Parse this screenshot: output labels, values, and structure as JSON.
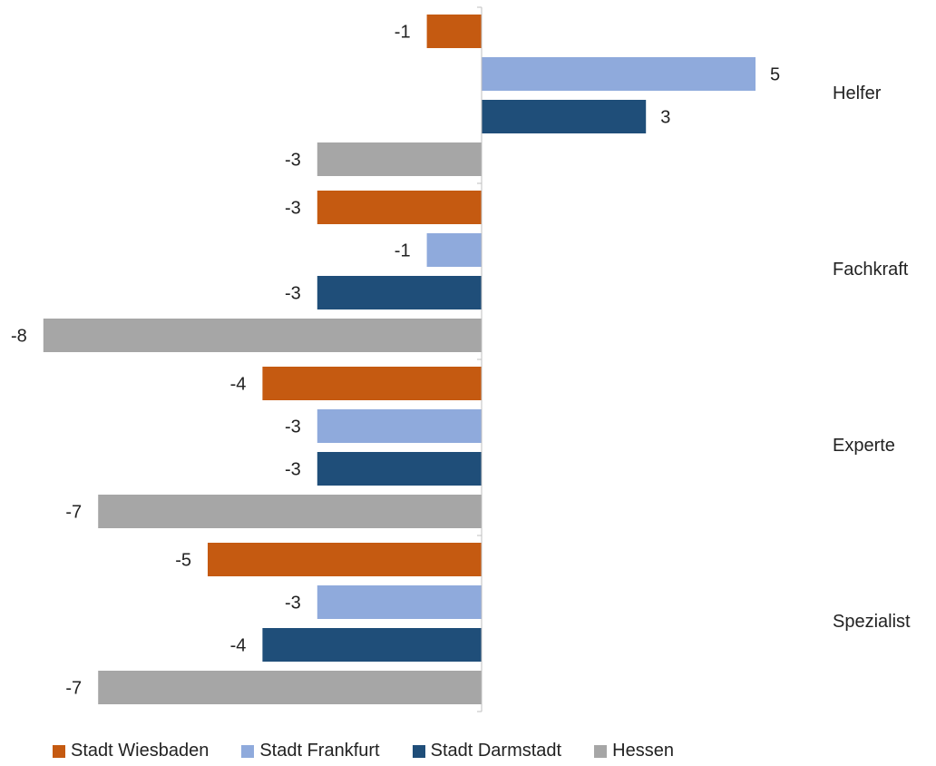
{
  "chart_data": {
    "type": "bar",
    "orientation": "horizontal",
    "categories": [
      "Helfer",
      "Fachkraft",
      "Experte",
      "Spezialist"
    ],
    "series": [
      {
        "name": "Stadt Wiesbaden",
        "color": "#C55A11",
        "values": [
          -1,
          -3,
          -4,
          -5
        ]
      },
      {
        "name": "Stadt Frankfurt",
        "color": "#8FAADC",
        "values": [
          5,
          -1,
          -3,
          -3
        ]
      },
      {
        "name": "Stadt Darmstadt",
        "color": "#1F4E79",
        "values": [
          3,
          -3,
          -3,
          -4
        ]
      },
      {
        "name": "Hessen",
        "color": "#A6A6A6",
        "values": [
          -3,
          -8,
          -7,
          -7
        ]
      }
    ],
    "data_labels": true,
    "xlim": [
      -8,
      5
    ],
    "grid": false,
    "legend_position": "bottom"
  }
}
